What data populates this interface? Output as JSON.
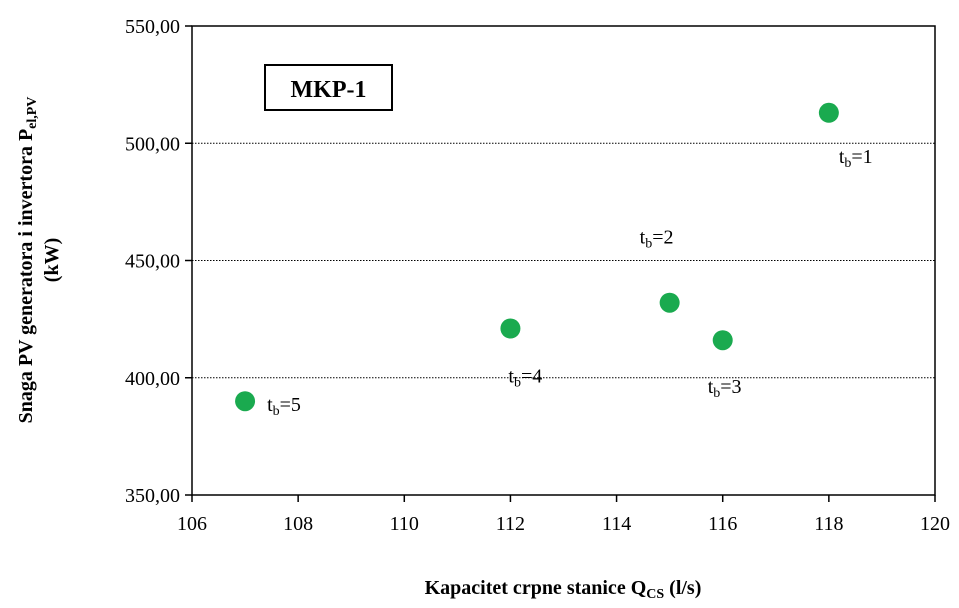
{
  "chart_data": {
    "type": "scatter",
    "xlabel": "Kapacitet crpne stanice Q",
    "xlabel_sub": "CS",
    "xlabel_unit": " (l/s)",
    "ylabel_line1": "Snaga PV  generatora i invertora P",
    "ylabel_line1_sub": "el,PV",
    "ylabel_line2": "(kW)",
    "xlim": [
      106,
      120
    ],
    "ylim": [
      350,
      550
    ],
    "x_ticks": [
      106,
      108,
      110,
      112,
      114,
      116,
      118,
      120
    ],
    "x_tick_labels": [
      "106",
      "108",
      "110",
      "112",
      "114",
      "116",
      "118",
      "120"
    ],
    "y_ticks": [
      350,
      400,
      450,
      500,
      550
    ],
    "y_tick_labels": [
      "350,00",
      "400,00",
      "450,00",
      "500,00",
      "550,00"
    ],
    "gridlines_y": [
      400,
      450,
      500
    ],
    "grid": "horizontal dotted",
    "box_label": "MKP-1",
    "marker_color": "#1aaa4f",
    "points": [
      {
        "x": 118,
        "y": 513,
        "label_main": "t",
        "label_sub": "b",
        "label_tail": "=1"
      },
      {
        "x": 115,
        "y": 432,
        "label_main": "t",
        "label_sub": "b",
        "label_tail": "=2"
      },
      {
        "x": 116,
        "y": 416,
        "label_main": "t",
        "label_sub": "b",
        "label_tail": "=3"
      },
      {
        "x": 112,
        "y": 421,
        "label_main": "t",
        "label_sub": "b",
        "label_tail": "=4"
      },
      {
        "x": 107,
        "y": 390,
        "label_main": "t",
        "label_sub": "b",
        "label_tail": "=5"
      }
    ]
  }
}
